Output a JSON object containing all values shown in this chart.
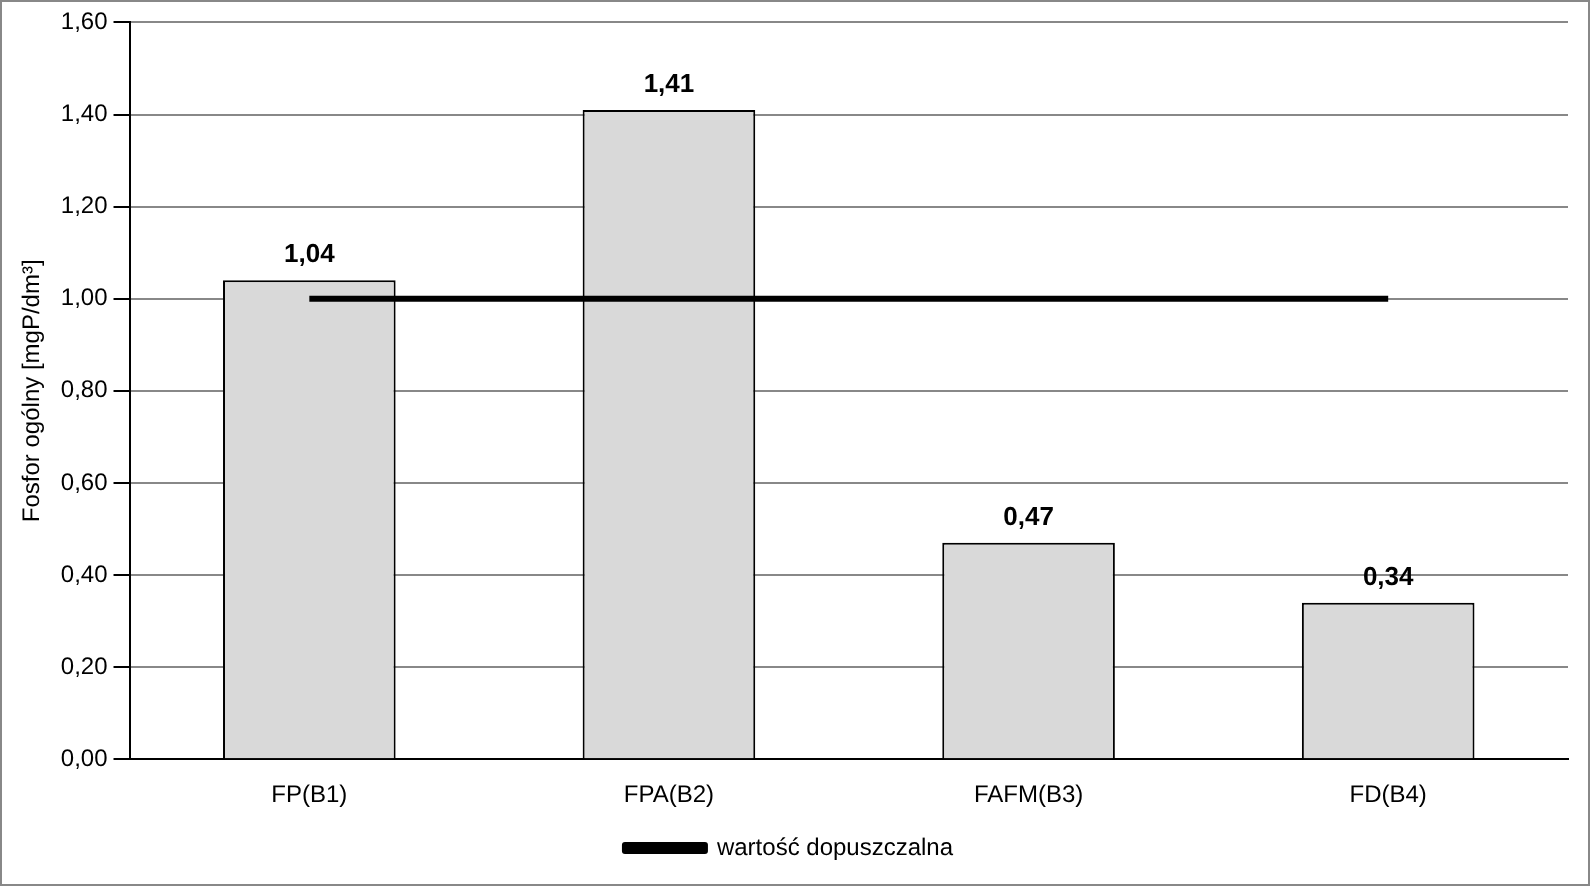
{
  "chart_data": {
    "type": "bar",
    "ylabel": "Fosfor ogólny [mgP/dm³]",
    "categories": [
      "FP(B1)",
      "FPA(B2)",
      "FAFM(B3)",
      "FD(B4)"
    ],
    "series": [
      {
        "color": "#d9d9d9",
        "values": [
          1.04,
          1.41,
          0.47,
          0.34
        ],
        "value_labels": [
          "1,04",
          "1,41",
          "0,47",
          "0,34"
        ]
      },
      {
        "type": "line",
        "name": "wartość dopuszczalna",
        "color": "#000000",
        "values": [
          1,
          1,
          1,
          1
        ],
        "marker": "none"
      }
    ],
    "ylim": [
      0,
      1.6
    ],
    "yticks": [
      {
        "value": 0,
        "label": "0,00"
      },
      {
        "value": 0.2,
        "label": "0,20"
      },
      {
        "value": 0.4,
        "label": "0,40"
      },
      {
        "value": 0.6,
        "label": "0,60"
      },
      {
        "value": 0.8,
        "label": "0,80"
      },
      {
        "value": 1,
        "label": "1,00"
      },
      {
        "value": 1.2,
        "label": "1,20"
      },
      {
        "value": 1.4,
        "label": "1,40"
      },
      {
        "value": 1.6,
        "label": "1,60"
      }
    ],
    "grid": "y",
    "legend": "bottom"
  }
}
